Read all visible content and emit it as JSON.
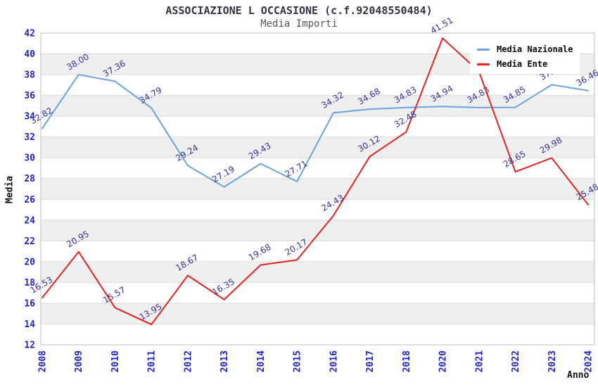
{
  "header": {
    "title": "ASSOCIAZIONE L OCCASIONE (c.f.92048550484)",
    "subtitle": "Media Importi"
  },
  "legend": {
    "position": "top-right",
    "items": [
      {
        "label": "Media Nazionale",
        "color": "#6ba3dc"
      },
      {
        "label": "Media Ente",
        "color": "#e62222"
      }
    ]
  },
  "axes": {
    "y_title": "Media",
    "x_title": "Anno",
    "y_ticks": [
      42,
      40,
      38,
      36,
      34,
      32,
      30,
      28,
      26,
      24,
      22,
      20,
      18,
      16,
      14,
      12
    ],
    "tick_label_color": "#2222cc"
  },
  "colors": {
    "band_gray": "#efefef",
    "gridline": "#dcdcdc",
    "plot_border": "#bdbdbd",
    "data_label": "#333399"
  },
  "chart_data": {
    "type": "line",
    "title": "ASSOCIAZIONE L OCCASIONE (c.f.92048550484)",
    "subtitle": "Media Importi",
    "xlabel": "Anno",
    "ylabel": "Media",
    "ylim": [
      12,
      42
    ],
    "ytick_step": 2,
    "grid": "horizontal-bands",
    "legend_position": "top-right",
    "categories": [
      "2008",
      "2009",
      "2010",
      "2011",
      "2012",
      "2013",
      "2014",
      "2015",
      "2016",
      "2017",
      "2018",
      "2020",
      "2021",
      "2022",
      "2023",
      "2024"
    ],
    "series": [
      {
        "name": "Media Nazionale",
        "color": "#6ba3dc",
        "values": [
          32.82,
          38.0,
          37.36,
          34.79,
          29.24,
          27.19,
          29.43,
          27.71,
          34.32,
          34.68,
          34.83,
          34.94,
          34.83,
          34.85,
          37.03,
          36.46
        ],
        "point_labels": [
          "32.82",
          "38.00",
          "37.36",
          "34.79",
          "29.24",
          "27.19",
          "29.43",
          "27.71",
          "34.32",
          "34.68",
          "34.83",
          "34.94",
          "34.83",
          "34.85",
          "37.03",
          "36.46"
        ]
      },
      {
        "name": "Media Ente",
        "color": "#e62222",
        "values": [
          16.53,
          20.95,
          15.57,
          13.95,
          18.67,
          16.35,
          19.68,
          20.17,
          24.43,
          30.12,
          32.48,
          41.51,
          38.3,
          28.65,
          29.98,
          25.48
        ],
        "point_labels": [
          "16.53",
          "20.95",
          "15.57",
          "13.95",
          "18.67",
          "16.35",
          "19.68",
          "20.17",
          "24.43",
          "30.12",
          "32.48",
          "41.51",
          null,
          "28.65",
          "29.98",
          "25.48"
        ]
      }
    ]
  }
}
